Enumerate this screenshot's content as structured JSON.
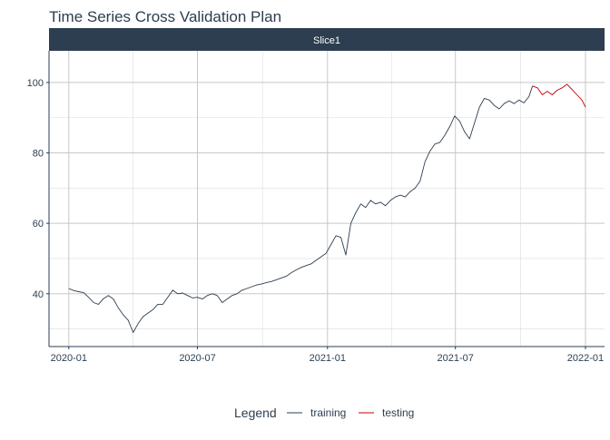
{
  "chart_data": {
    "type": "line",
    "title": "Time Series Cross Validation Plan",
    "facet_label": "Slice1",
    "xlabel": "",
    "ylabel": "",
    "x_ticks": [
      "2020-01",
      "2020-07",
      "2021-01",
      "2021-07",
      "2022-01"
    ],
    "y_ticks": [
      40,
      60,
      80,
      100
    ],
    "xlim": [
      "2019-12-04",
      "2022-01-28"
    ],
    "ylim": [
      25,
      109
    ],
    "grid": true,
    "legend": {
      "title": "Legend",
      "position": "bottom"
    },
    "series": [
      {
        "name": "training",
        "color": "#2c3e50",
        "points": [
          [
            "2020-01-01",
            41.5
          ],
          [
            "2020-01-08",
            40.9
          ],
          [
            "2020-01-15",
            40.6
          ],
          [
            "2020-01-22",
            40.3
          ],
          [
            "2020-01-29",
            39.0
          ],
          [
            "2020-02-05",
            37.5
          ],
          [
            "2020-02-12",
            37.0
          ],
          [
            "2020-02-19",
            38.6
          ],
          [
            "2020-02-26",
            39.5
          ],
          [
            "2020-03-04",
            38.5
          ],
          [
            "2020-03-11",
            36.0
          ],
          [
            "2020-03-18",
            34.0
          ],
          [
            "2020-03-25",
            32.5
          ],
          [
            "2020-04-01",
            29.0
          ],
          [
            "2020-04-08",
            31.5
          ],
          [
            "2020-04-15",
            33.5
          ],
          [
            "2020-04-22",
            34.5
          ],
          [
            "2020-04-29",
            35.5
          ],
          [
            "2020-05-06",
            37.0
          ],
          [
            "2020-05-13",
            37.0
          ],
          [
            "2020-05-20",
            39.0
          ],
          [
            "2020-05-27",
            41.0
          ],
          [
            "2020-06-03",
            40.0
          ],
          [
            "2020-06-10",
            40.2
          ],
          [
            "2020-06-17",
            39.5
          ],
          [
            "2020-06-24",
            38.8
          ],
          [
            "2020-07-01",
            39.0
          ],
          [
            "2020-07-08",
            38.5
          ],
          [
            "2020-07-15",
            39.5
          ],
          [
            "2020-07-22",
            40.0
          ],
          [
            "2020-07-29",
            39.5
          ],
          [
            "2020-08-05",
            37.5
          ],
          [
            "2020-08-12",
            38.5
          ],
          [
            "2020-08-19",
            39.5
          ],
          [
            "2020-08-26",
            40.0
          ],
          [
            "2020-09-02",
            41.0
          ],
          [
            "2020-09-09",
            41.5
          ],
          [
            "2020-09-16",
            42.0
          ],
          [
            "2020-09-23",
            42.5
          ],
          [
            "2020-09-30",
            42.8
          ],
          [
            "2020-10-07",
            43.2
          ],
          [
            "2020-10-14",
            43.5
          ],
          [
            "2020-10-21",
            44.0
          ],
          [
            "2020-10-28",
            44.5
          ],
          [
            "2020-11-04",
            45.0
          ],
          [
            "2020-11-11",
            46.0
          ],
          [
            "2020-11-18",
            46.8
          ],
          [
            "2020-11-25",
            47.5
          ],
          [
            "2020-12-02",
            48.0
          ],
          [
            "2020-12-09",
            48.5
          ],
          [
            "2020-12-16",
            49.5
          ],
          [
            "2020-12-23",
            50.5
          ],
          [
            "2020-12-30",
            51.5
          ],
          [
            "2021-01-06",
            54.0
          ],
          [
            "2021-01-13",
            56.5
          ],
          [
            "2021-01-20",
            56.0
          ],
          [
            "2021-01-27",
            51.0
          ],
          [
            "2021-02-03",
            60.0
          ],
          [
            "2021-02-10",
            63.0
          ],
          [
            "2021-02-17",
            65.5
          ],
          [
            "2021-02-24",
            64.5
          ],
          [
            "2021-03-03",
            66.5
          ],
          [
            "2021-03-10",
            65.5
          ],
          [
            "2021-03-17",
            66.0
          ],
          [
            "2021-03-24",
            65.0
          ],
          [
            "2021-03-31",
            66.5
          ],
          [
            "2021-04-07",
            67.5
          ],
          [
            "2021-04-14",
            68.0
          ],
          [
            "2021-04-21",
            67.5
          ],
          [
            "2021-04-28",
            69.0
          ],
          [
            "2021-05-05",
            70.0
          ],
          [
            "2021-05-12",
            72.0
          ],
          [
            "2021-05-19",
            77.5
          ],
          [
            "2021-05-26",
            80.5
          ],
          [
            "2021-06-02",
            82.5
          ],
          [
            "2021-06-09",
            83.0
          ],
          [
            "2021-06-16",
            85.0
          ],
          [
            "2021-06-23",
            87.5
          ],
          [
            "2021-06-30",
            90.5
          ],
          [
            "2021-07-07",
            89.0
          ],
          [
            "2021-07-14",
            86.0
          ],
          [
            "2021-07-21",
            84.0
          ],
          [
            "2021-07-28",
            88.5
          ],
          [
            "2021-08-04",
            93.0
          ],
          [
            "2021-08-11",
            95.5
          ],
          [
            "2021-08-18",
            95.0
          ],
          [
            "2021-08-25",
            93.5
          ],
          [
            "2021-09-01",
            92.5
          ],
          [
            "2021-09-08",
            94.0
          ],
          [
            "2021-09-15",
            94.8
          ],
          [
            "2021-09-22",
            94.0
          ],
          [
            "2021-09-29",
            95.0
          ],
          [
            "2021-10-06",
            94.2
          ],
          [
            "2021-10-13",
            96.0
          ],
          [
            "2021-10-18",
            99.0
          ]
        ]
      },
      {
        "name": "testing",
        "color": "#c00000",
        "points": [
          [
            "2021-10-18",
            99.0
          ],
          [
            "2021-10-25",
            98.5
          ],
          [
            "2021-11-01",
            96.5
          ],
          [
            "2021-11-08",
            97.5
          ],
          [
            "2021-11-15",
            96.5
          ],
          [
            "2021-11-22",
            97.8
          ],
          [
            "2021-11-29",
            98.5
          ],
          [
            "2021-12-06",
            99.5
          ],
          [
            "2021-12-13",
            98.0
          ],
          [
            "2021-12-20",
            96.5
          ],
          [
            "2021-12-27",
            95.0
          ],
          [
            "2022-01-01",
            93.0
          ]
        ]
      }
    ]
  }
}
